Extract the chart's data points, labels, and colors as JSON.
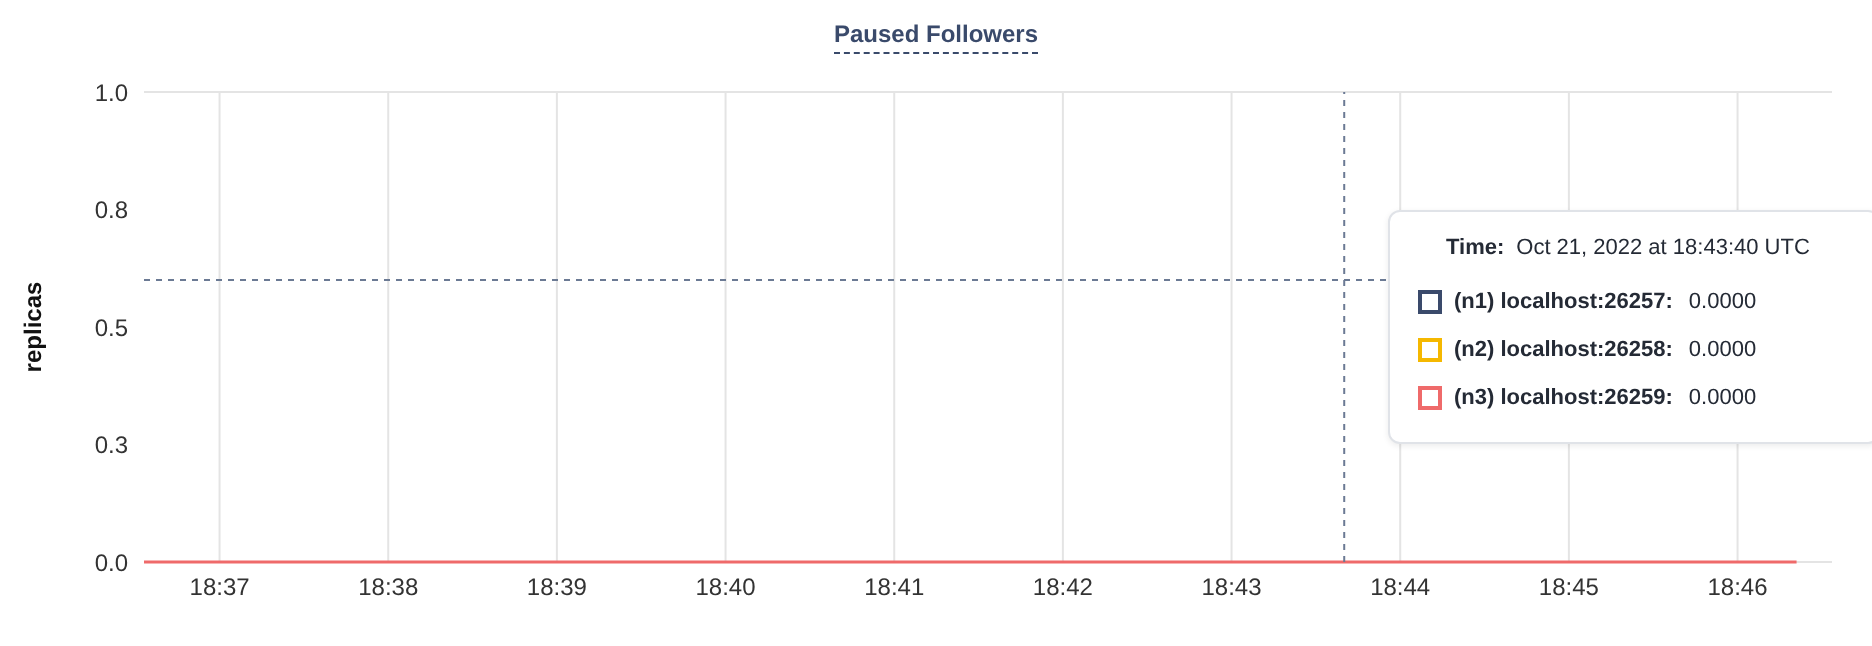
{
  "chart_data": {
    "type": "line",
    "title": "Paused Followers",
    "ylabel": "replicas",
    "xlim": [
      18.6092,
      18.776
    ],
    "xticks": [
      {
        "value": 18.616667,
        "label": "18:37"
      },
      {
        "value": 18.633333,
        "label": "18:38"
      },
      {
        "value": 18.65,
        "label": "18:39"
      },
      {
        "value": 18.666667,
        "label": "18:40"
      },
      {
        "value": 18.683333,
        "label": "18:41"
      },
      {
        "value": 18.7,
        "label": "18:42"
      },
      {
        "value": 18.716667,
        "label": "18:43"
      },
      {
        "value": 18.733333,
        "label": "18:44"
      },
      {
        "value": 18.75,
        "label": "18:45"
      },
      {
        "value": 18.766667,
        "label": "18:46"
      }
    ],
    "ylim": [
      0,
      1
    ],
    "yticks": [
      {
        "value": 0,
        "label": "0.0"
      },
      {
        "value": 0.25,
        "label": "0.3"
      },
      {
        "value": 0.5,
        "label": "0.5"
      },
      {
        "value": 0.75,
        "label": "0.8"
      },
      {
        "value": 1,
        "label": "1.0"
      }
    ],
    "x": [
      18.6092,
      18.7725
    ],
    "series": [
      {
        "name": "(n1) localhost:26257:",
        "color": "#3a4a6b",
        "values": [
          null,
          null
        ]
      },
      {
        "name": "(n2) localhost:26258:",
        "color": "#f5b800",
        "values": [
          null,
          null
        ]
      },
      {
        "name": "(n3) localhost:26259:",
        "color": "#ef6a6a",
        "values": [
          0,
          0
        ]
      }
    ],
    "ref_lines": [
      {
        "axis": "x",
        "value": 18.7278,
        "color": "#6b7a94",
        "line_style": "dashed"
      },
      {
        "axis": "y",
        "value": 0.6,
        "color": "#6b7a94",
        "line_style": "dashed"
      }
    ],
    "annotations": [
      "Time:",
      "Oct 21, 2022 at 18:43:40 UTC",
      "0.0000",
      "0.0000",
      "0.0000"
    ],
    "grid": "x",
    "legend": "right",
    "marker": "none",
    "line_style": "solid"
  }
}
